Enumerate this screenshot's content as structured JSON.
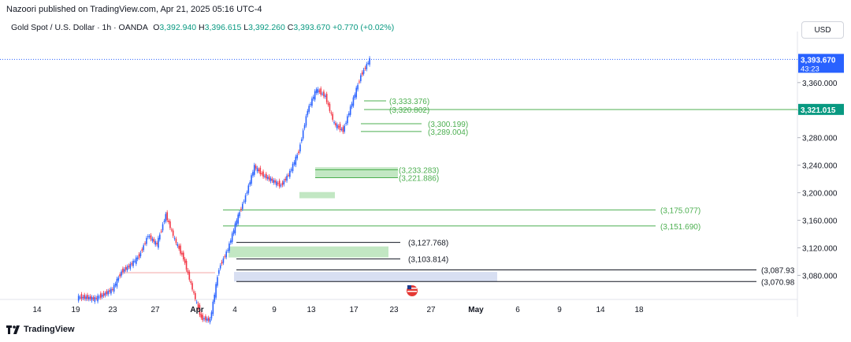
{
  "header": {
    "publisher_line": "Nazoori published on TradingView.com, Apr 21, 2025 05:16 UTC-4",
    "symbol_title": "Gold Spot / U.S. Dollar · 1h · OANDA",
    "o_label": "O",
    "o_value": "3,392.940",
    "h_label": "H",
    "h_value": "3,396.615",
    "l_label": "L",
    "l_value": "3,392.260",
    "c_label": "C",
    "c_value": "3,393.670",
    "change": "+0.770 (+0.02%)",
    "currency": "USD"
  },
  "footer": {
    "brand": "TradingView"
  },
  "colors": {
    "up": "#089981",
    "down": "#f23645",
    "candle_up": "#2962ff",
    "candle_down": "#f23645",
    "level_green": "#4caf50",
    "level_black": "#131722",
    "zone_green": "#b7e3b9",
    "zone_blue": "#d1d9f0",
    "zone_pink": "#f8c9c9",
    "price_tag": "#089981",
    "current_tag": "#2962ff"
  },
  "chart_data": {
    "type": "candlestick",
    "ylim": [
      3045,
      3425
    ],
    "x_ticks": [
      "14",
      "19",
      "23",
      "27",
      "Apr",
      "4",
      "9",
      "13",
      "17",
      "23",
      "27",
      "May",
      "6",
      "9",
      "14",
      "18"
    ],
    "y_ticks": [
      "3,360.000",
      "3,320.000",
      "3,280.000",
      "3,240.000",
      "3,200.000",
      "3,160.000",
      "3,120.000",
      "3,080.000"
    ],
    "y_tick_values": [
      3360,
      3320,
      3280,
      3240,
      3200,
      3160,
      3120,
      3080
    ],
    "current_price": {
      "value": 3393.67,
      "label": "3,393.670",
      "countdown": "43:23"
    },
    "level_price": {
      "value": 3321.015,
      "label": "3,321.015"
    },
    "levels": [
      {
        "value": 3333.376,
        "label": "(3,333.376)",
        "color": "green"
      },
      {
        "value": 3320.802,
        "label": "(3,320.802)",
        "color": "green"
      },
      {
        "value": 3300.199,
        "label": "(3,300.199)",
        "color": "green"
      },
      {
        "value": 3289.004,
        "label": "(3,289.004)",
        "color": "green"
      },
      {
        "value": 3233.283,
        "label": "(3,233.283)",
        "color": "green"
      },
      {
        "value": 3221.886,
        "label": "(3,221.886)",
        "color": "green"
      },
      {
        "value": 3175.077,
        "label": "(3,175.077)",
        "color": "green"
      },
      {
        "value": 3151.69,
        "label": "(3,151.690)",
        "color": "green"
      },
      {
        "value": 3127.768,
        "label": "(3,127.768)",
        "color": "black"
      },
      {
        "value": 3103.814,
        "label": "(3,103.814)",
        "color": "black"
      },
      {
        "value": 3087.93,
        "label": "(3,087.93",
        "color": "black"
      },
      {
        "value": 3070.98,
        "label": "(3,070.98",
        "color": "black"
      }
    ],
    "zones": [
      {
        "top": 3237,
        "bottom": 3222,
        "color": "green"
      },
      {
        "top": 3201,
        "bottom": 3192,
        "color": "green"
      },
      {
        "top": 3122,
        "bottom": 3106,
        "color": "green"
      },
      {
        "top": 3085,
        "bottom": 3071,
        "color": "blue"
      },
      {
        "top": 3085,
        "bottom": 3083,
        "color": "pink"
      }
    ],
    "price_path": [
      [
        "Mar 20",
        3048
      ],
      [
        "Mar 24",
        3046
      ],
      [
        "Mar 26",
        3052
      ],
      [
        "Mar 27",
        3060
      ],
      [
        "Mar 28",
        3085
      ],
      [
        "Mar 29",
        3095
      ],
      [
        "Mar 31",
        3108
      ],
      [
        "Apr 1",
        3138
      ],
      [
        "Apr 2",
        3125
      ],
      [
        "Apr 3",
        3168
      ],
      [
        "Apr 3b",
        3132
      ],
      [
        "Apr 4",
        3105
      ],
      [
        "Apr 4b",
        3060
      ],
      [
        "Apr 7",
        3018
      ],
      [
        "Apr 8",
        3015
      ],
      [
        "Apr 9",
        3090
      ],
      [
        "Apr 10",
        3118
      ],
      [
        "Apr 10b",
        3160
      ],
      [
        "Apr 11",
        3195
      ],
      [
        "Apr 11b",
        3238
      ],
      [
        "Apr 12",
        3225
      ],
      [
        "Apr 14",
        3218
      ],
      [
        "Apr 14b",
        3210
      ],
      [
        "Apr 15",
        3230
      ],
      [
        "Apr 15b",
        3260
      ],
      [
        "Apr 16",
        3320
      ],
      [
        "Apr 16b",
        3350
      ],
      [
        "Apr 17",
        3340
      ],
      [
        "Apr 17b",
        3300
      ],
      [
        "Apr 17c",
        3290
      ],
      [
        "Apr 18",
        3330
      ],
      [
        "Apr 18b",
        3370
      ],
      [
        "Apr 21",
        3393.67
      ]
    ]
  }
}
